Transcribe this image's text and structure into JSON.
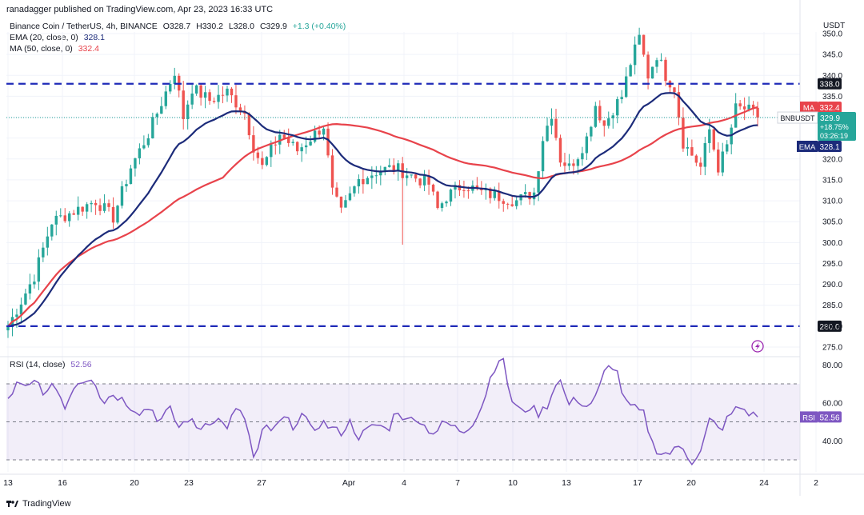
{
  "header": {
    "text": "ranadagger published on TradingView.com, Apr 23, 2023 16:33 UTC"
  },
  "legend": {
    "symbol": "Binance Coin / TetherUS, 4h, BINANCE",
    "o": "O328.7",
    "h": "H330.2",
    "l": "L328.0",
    "c": "C329.9",
    "chg": "+1.3 (+0.40%)",
    "ema_label": "EMA (20, close, 0)",
    "ema_value": "328.1",
    "ma_label": "MA (50, close, 0)",
    "ma_value": "332.4"
  },
  "rsi_legend": {
    "label": "RSI (14, close)",
    "value": "52.56"
  },
  "currency": "USDT",
  "footer": {
    "brand": "TradingView"
  },
  "colors": {
    "up": "#26a69a",
    "down": "#ef5350",
    "ema": "#1c2b7a",
    "ma": "#e8434b",
    "rsi": "#7e57c2",
    "level": "#1f2ab8"
  },
  "chart_data": {
    "type": "candlestick",
    "price_axis": {
      "min": 275,
      "max": 350,
      "ticks": [
        275,
        280,
        285,
        290,
        295,
        300,
        305,
        310,
        315,
        320,
        325,
        330,
        335,
        340,
        345,
        350
      ]
    },
    "x_labels": [
      "13",
      "16",
      "20",
      "23",
      "27",
      "Apr",
      "4",
      "7",
      "10",
      "13",
      "17",
      "20",
      "24",
      "2"
    ],
    "levels": [
      {
        "value": 338.0,
        "label": "338.0"
      },
      {
        "value": 280.0,
        "label": "280.0"
      }
    ],
    "price_tags": [
      {
        "label": "MA",
        "value": "332.4",
        "color": "#e8434b"
      },
      {
        "label": "BNBUSDT",
        "value": "329.9",
        "extra": [
          "+18.75%",
          "03:26:19"
        ],
        "color": "#26a69a"
      },
      {
        "label": "EMA",
        "value": "328.1",
        "color": "#1c2b7a"
      }
    ],
    "anchors": [
      [
        0,
        280
      ],
      [
        3,
        292
      ],
      [
        5,
        305
      ],
      [
        8,
        308
      ],
      [
        10,
        310
      ],
      [
        12,
        306
      ],
      [
        14,
        318
      ],
      [
        16,
        326
      ],
      [
        18,
        336
      ],
      [
        19,
        341
      ],
      [
        20,
        330
      ],
      [
        21,
        337
      ],
      [
        23,
        334
      ],
      [
        25,
        336
      ],
      [
        27,
        331
      ],
      [
        28,
        323
      ],
      [
        29,
        318
      ],
      [
        31,
        326
      ],
      [
        33,
        322
      ],
      [
        35,
        326
      ],
      [
        36,
        328
      ],
      [
        37,
        312
      ],
      [
        38,
        307
      ],
      [
        40,
        315
      ],
      [
        42,
        317
      ],
      [
        44,
        318
      ],
      [
        46,
        316
      ],
      [
        48,
        314
      ],
      [
        49,
        308
      ],
      [
        50,
        311
      ],
      [
        52,
        314
      ],
      [
        54,
        312
      ],
      [
        56,
        311
      ],
      [
        58,
        310
      ],
      [
        60,
        312
      ],
      [
        61,
        325
      ],
      [
        62,
        331
      ],
      [
        63,
        320
      ],
      [
        64,
        318
      ],
      [
        65,
        321
      ],
      [
        66,
        325
      ],
      [
        67,
        333
      ],
      [
        68,
        328
      ],
      [
        69,
        332
      ],
      [
        70,
        335
      ],
      [
        71,
        343
      ],
      [
        72,
        349
      ],
      [
        73,
        340
      ],
      [
        74,
        345
      ],
      [
        75,
        340
      ],
      [
        76,
        337
      ],
      [
        77,
        324
      ],
      [
        78,
        321
      ],
      [
        79,
        318
      ],
      [
        80,
        327
      ],
      [
        81,
        318
      ],
      [
        82,
        323
      ],
      [
        83,
        332
      ],
      [
        84,
        332
      ],
      [
        85,
        331
      ],
      [
        85.5,
        329.9
      ]
    ],
    "ema_last": 328.1,
    "ma_last": 332.4,
    "rsi": {
      "min": 25,
      "max": 90,
      "ticks": [
        40,
        60,
        80
      ],
      "band": [
        30,
        70
      ],
      "mid": 50,
      "last": 52.56,
      "anchors": [
        [
          0,
          62
        ],
        [
          1,
          70
        ],
        [
          2,
          67
        ],
        [
          3,
          72
        ],
        [
          4,
          64
        ],
        [
          5,
          70
        ],
        [
          6,
          57
        ],
        [
          7,
          70
        ],
        [
          8,
          72
        ],
        [
          9,
          74
        ],
        [
          10,
          60
        ],
        [
          11,
          65
        ],
        [
          12,
          62
        ],
        [
          13,
          58
        ],
        [
          14,
          55
        ],
        [
          15,
          58
        ],
        [
          16,
          50
        ],
        [
          17,
          57
        ],
        [
          18,
          47
        ],
        [
          19,
          52
        ],
        [
          20,
          46
        ],
        [
          21,
          50
        ],
        [
          22,
          52
        ],
        [
          23,
          47
        ],
        [
          24,
          56
        ],
        [
          25,
          52
        ],
        [
          26,
          28
        ],
        [
          27,
          48
        ],
        [
          28,
          45
        ],
        [
          29,
          52
        ],
        [
          30,
          48
        ],
        [
          31,
          54
        ],
        [
          32,
          45
        ],
        [
          33,
          50
        ],
        [
          34,
          47
        ],
        [
          35,
          44
        ],
        [
          36,
          50
        ],
        [
          37,
          42
        ],
        [
          38,
          46
        ],
        [
          39,
          49
        ],
        [
          40,
          45
        ],
        [
          41,
          57
        ],
        [
          42,
          50
        ],
        [
          43,
          53
        ],
        [
          44,
          47
        ],
        [
          45,
          44
        ],
        [
          46,
          50
        ],
        [
          47,
          47
        ],
        [
          48,
          45
        ],
        [
          49,
          50
        ],
        [
          50,
          59
        ],
        [
          51,
          76
        ],
        [
          52,
          86
        ],
        [
          53,
          62
        ],
        [
          54,
          55
        ],
        [
          55,
          58
        ],
        [
          56,
          54
        ],
        [
          57,
          60
        ],
        [
          58,
          75
        ],
        [
          59,
          59
        ],
        [
          60,
          62
        ],
        [
          61,
          58
        ],
        [
          62,
          63
        ],
        [
          63,
          78
        ],
        [
          64,
          80
        ],
        [
          65,
          60
        ],
        [
          66,
          57
        ],
        [
          67,
          54
        ],
        [
          68,
          37
        ],
        [
          69,
          33
        ],
        [
          70,
          34
        ],
        [
          71,
          38
        ],
        [
          72,
          29
        ],
        [
          73,
          34
        ],
        [
          74,
          52
        ],
        [
          75,
          45
        ],
        [
          76,
          53
        ],
        [
          77,
          58
        ],
        [
          78,
          55
        ],
        [
          79,
          52
        ]
      ]
    }
  }
}
